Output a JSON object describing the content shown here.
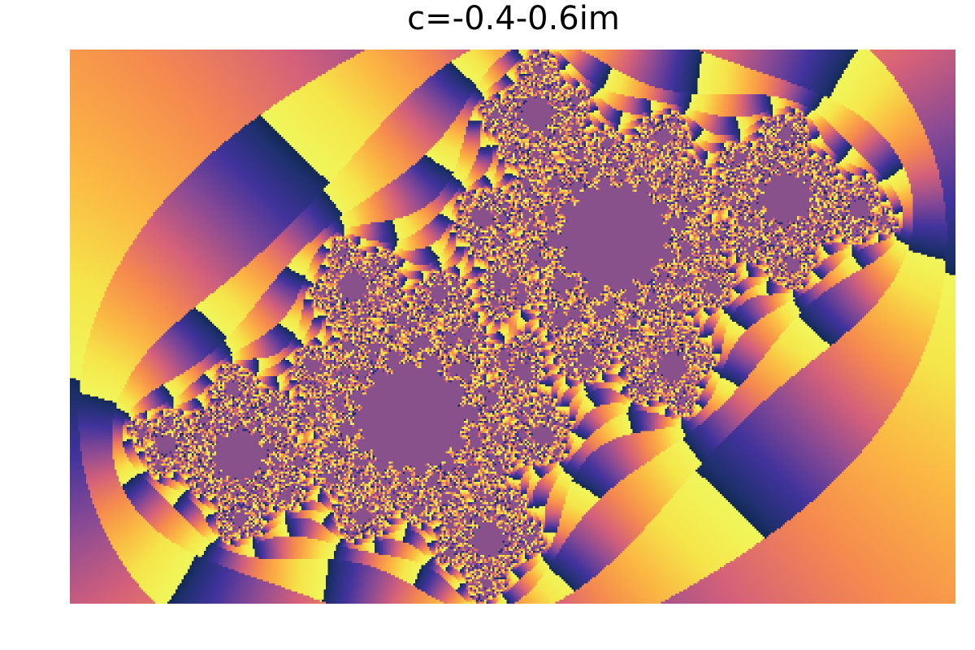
{
  "plot": {
    "title": "c=-0.4-0.6im"
  },
  "fractal": {
    "type": "julia-set",
    "c_real": -0.4,
    "c_imag": -0.6,
    "interior_color": "#88518c",
    "colormap": [
      "#001a24",
      "#1c2f6a",
      "#41339c",
      "#8a4a94",
      "#d4607a",
      "#f5894f",
      "#fbb543",
      "#f5e54a",
      "#f0f75b"
    ]
  }
}
